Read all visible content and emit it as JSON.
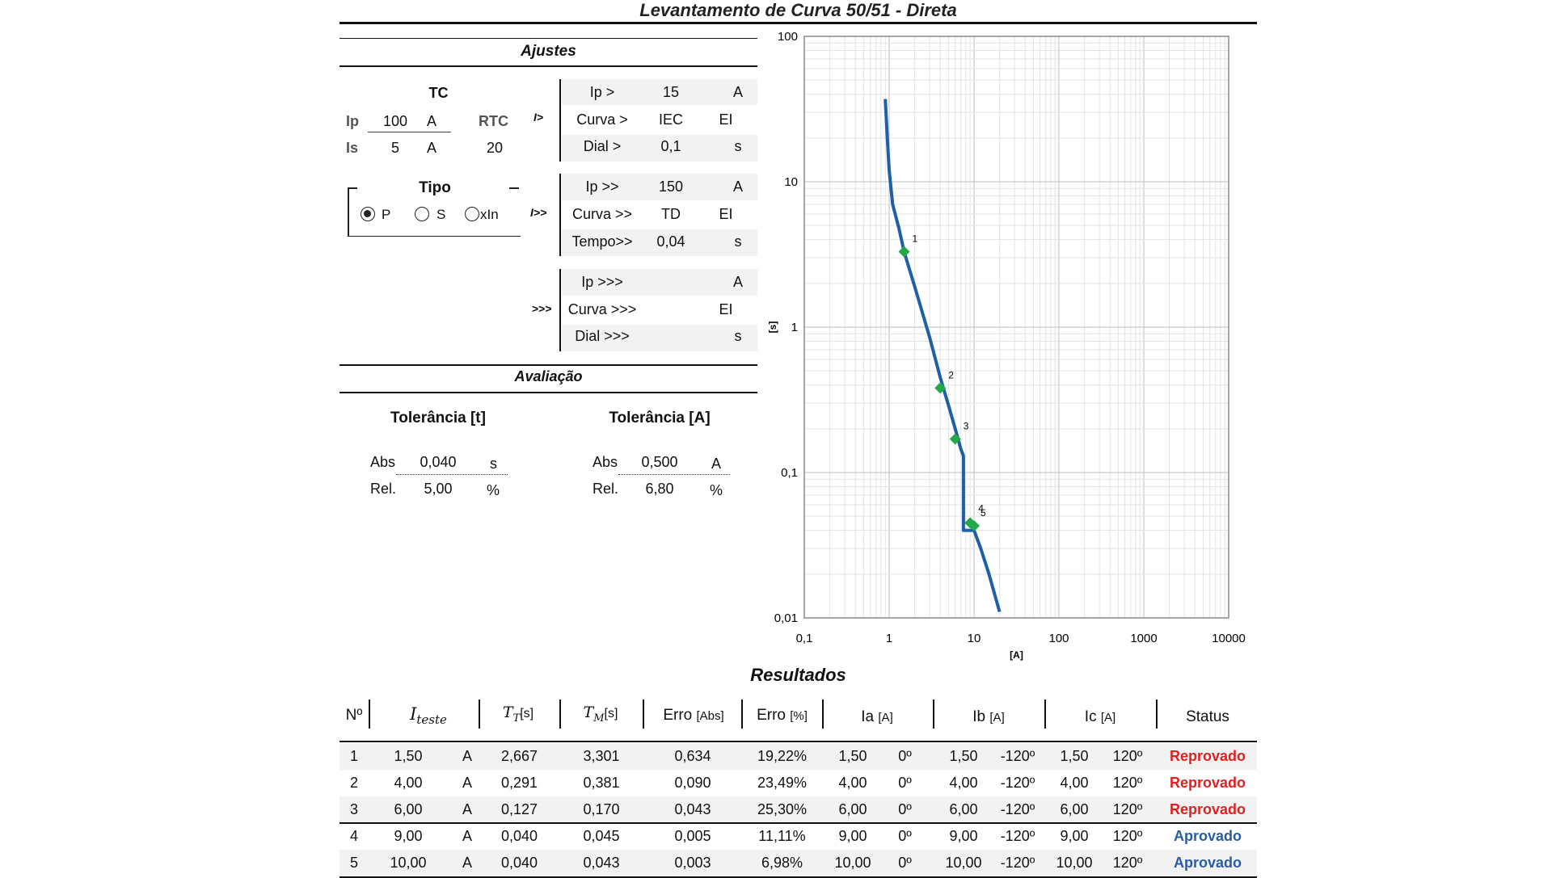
{
  "title": "Levantamento de Curva 50/51 - Direta",
  "ajustes": {
    "heading": "Ajustes",
    "tc": {
      "heading": "TC",
      "ip_label": "Ip",
      "ip_value": "100",
      "ip_unit": "A",
      "is_label": "Is",
      "is_value": "5",
      "is_unit": "A",
      "rtc_label": "RTC",
      "rtc_value": "20"
    },
    "tipo": {
      "heading": "Tipo",
      "options": [
        "P",
        "S",
        "xIn"
      ],
      "selected": "P"
    },
    "stage1": {
      "symbol": "I>",
      "rows": [
        {
          "label": "Ip >",
          "value": "15",
          "unit": "A"
        },
        {
          "label": "Curva >",
          "value": "IEC",
          "unit": "EI"
        },
        {
          "label": "Dial >",
          "value": "0,1",
          "unit": "s"
        }
      ]
    },
    "stage2": {
      "symbol": "I>>",
      "rows": [
        {
          "label": "Ip >>",
          "value": "150",
          "unit": "A"
        },
        {
          "label": "Curva >>",
          "value": "TD",
          "unit": "EI"
        },
        {
          "label": "Tempo>>",
          "value": "0,04",
          "unit": "s"
        }
      ]
    },
    "stage3": {
      "symbol": ">>>",
      "rows": [
        {
          "label": "Ip >>>",
          "value": "",
          "unit": "A"
        },
        {
          "label": "Curva >>>",
          "value": "",
          "unit": "EI"
        },
        {
          "label": "Dial >>>",
          "value": "",
          "unit": "s"
        }
      ]
    }
  },
  "avaliacao": {
    "heading": "Avaliação",
    "tol_t": {
      "heading": "Tolerância [t]",
      "abs_label": "Abs",
      "abs_value": "0,040",
      "abs_unit": "s",
      "rel_label": "Rel.",
      "rel_value": "5,00",
      "rel_unit": "%"
    },
    "tol_a": {
      "heading": "Tolerância [A]",
      "abs_label": "Abs",
      "abs_value": "0,500",
      "abs_unit": "A",
      "rel_label": "Rel.",
      "rel_value": "6,80",
      "rel_unit": "%"
    }
  },
  "chart_data": {
    "type": "line",
    "xscale": "log",
    "yscale": "log",
    "xlim": [
      0.1,
      10000
    ],
    "ylim": [
      0.01,
      100
    ],
    "xlabel": "[A]",
    "ylabel": "[s]",
    "x_ticks": [
      "0,1",
      "1",
      "10",
      "100",
      "1000",
      "10000"
    ],
    "y_ticks": [
      "0,01",
      "0,1",
      "1",
      "10",
      "100"
    ],
    "grid": true,
    "series": [
      {
        "kind": "curve",
        "color": "#1f5fa8",
        "points": [
          [
            0.9,
            37
          ],
          [
            0.95,
            20
          ],
          [
            1.0,
            12
          ],
          [
            1.1,
            7
          ],
          [
            1.3,
            4.8
          ],
          [
            1.5,
            3.3
          ],
          [
            2,
            1.9
          ],
          [
            3,
            0.85
          ],
          [
            4,
            0.45
          ],
          [
            5,
            0.29
          ],
          [
            6,
            0.2
          ],
          [
            7,
            0.145
          ],
          [
            7.5,
            0.13
          ],
          [
            7.5,
            0.04
          ],
          [
            10,
            0.04
          ],
          [
            12,
            0.03
          ],
          [
            15,
            0.02
          ],
          [
            20,
            0.011
          ]
        ]
      },
      {
        "kind": "markers",
        "color": "#23a84a",
        "points": [
          {
            "x": 1.5,
            "y": 3.301,
            "label": "1"
          },
          {
            "x": 4.0,
            "y": 0.381,
            "label": "2"
          },
          {
            "x": 6.0,
            "y": 0.17,
            "label": "3"
          },
          {
            "x": 9.0,
            "y": 0.045,
            "label": "4"
          },
          {
            "x": 10.0,
            "y": 0.043,
            "label": "5"
          }
        ]
      }
    ]
  },
  "resultados": {
    "heading": "Resultados",
    "headers": [
      "Nº",
      "I_teste",
      "T_T[s]",
      "T_M[s]",
      "Erro [Abs]",
      "Erro [%]",
      "Ia [A]",
      "Ib [A]",
      "Ic [A]",
      "Status"
    ],
    "rows": [
      {
        "n": "1",
        "i": "1,50",
        "unit": "A",
        "tt": "2,667",
        "tm": "3,301",
        "eabs": "0,634",
        "epct": "19,22%",
        "ia": "1,50",
        "ia_ang": "0º",
        "ib": "1,50",
        "ib_ang": "-120º",
        "ic": "1,50",
        "ic_ang": "120º",
        "status": "Reprovado"
      },
      {
        "n": "2",
        "i": "4,00",
        "unit": "A",
        "tt": "0,291",
        "tm": "0,381",
        "eabs": "0,090",
        "epct": "23,49%",
        "ia": "4,00",
        "ia_ang": "0º",
        "ib": "4,00",
        "ib_ang": "-120º",
        "ic": "4,00",
        "ic_ang": "120º",
        "status": "Reprovado"
      },
      {
        "n": "3",
        "i": "6,00",
        "unit": "A",
        "tt": "0,127",
        "tm": "0,170",
        "eabs": "0,043",
        "epct": "25,30%",
        "ia": "6,00",
        "ia_ang": "0º",
        "ib": "6,00",
        "ib_ang": "-120º",
        "ic": "6,00",
        "ic_ang": "120º",
        "status": "Reprovado"
      },
      {
        "n": "4",
        "i": "9,00",
        "unit": "A",
        "tt": "0,040",
        "tm": "0,045",
        "eabs": "0,005",
        "epct": "11,11%",
        "ia": "9,00",
        "ia_ang": "0º",
        "ib": "9,00",
        "ib_ang": "-120º",
        "ic": "9,00",
        "ic_ang": "120º",
        "status": "Aprovado"
      },
      {
        "n": "5",
        "i": "10,00",
        "unit": "A",
        "tt": "0,040",
        "tm": "0,043",
        "eabs": "0,003",
        "epct": "6,98%",
        "ia": "10,00",
        "ia_ang": "0º",
        "ib": "10,00",
        "ib_ang": "-120º",
        "ic": "10,00",
        "ic_ang": "120º",
        "status": "Aprovado"
      }
    ]
  }
}
